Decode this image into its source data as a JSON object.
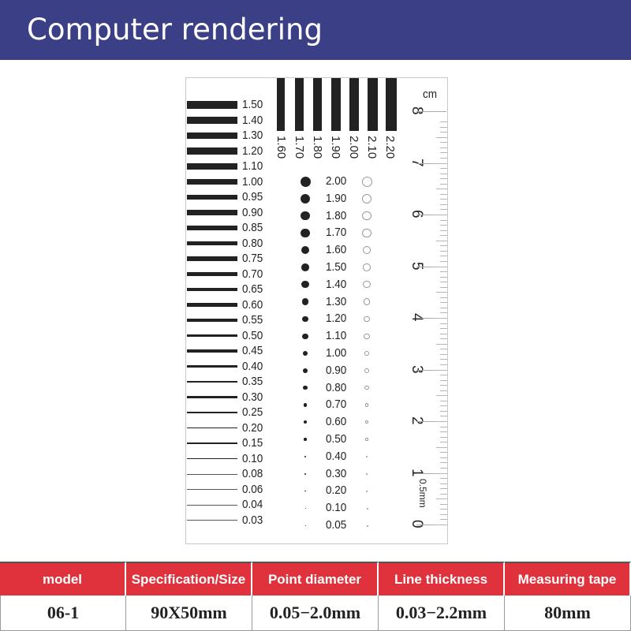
{
  "header": {
    "title": "Computer rendering"
  },
  "card": {
    "horizontal_lines": [
      "1.50",
      "1.40",
      "1.30",
      "1.20",
      "1.10",
      "1.00",
      "0.95",
      "0.90",
      "0.85",
      "0.80",
      "0.75",
      "0.70",
      "0.65",
      "0.60",
      "0.55",
      "0.50",
      "0.45",
      "0.40",
      "0.35",
      "0.30",
      "0.25",
      "0.20",
      "0.15",
      "0.10",
      "0.08",
      "0.06",
      "0.04",
      "0.03"
    ],
    "vertical_bars": [
      "1.60",
      "1.70",
      "1.80",
      "1.90",
      "2.00",
      "2.10",
      "2.20"
    ],
    "dots": [
      "2.00",
      "1.90",
      "1.80",
      "1.70",
      "1.60",
      "1.50",
      "1.40",
      "1.30",
      "1.20",
      "1.10",
      "1.00",
      "0.90",
      "0.80",
      "0.70",
      "0.60",
      "0.50",
      "0.40",
      "0.30",
      "0.20",
      "0.10",
      "0.05"
    ],
    "ruler": {
      "unit": "cm",
      "numbers": [
        "0",
        "1",
        "2",
        "3",
        "4",
        "5",
        "6",
        "7",
        "8"
      ],
      "minor_label": "0.5mm"
    }
  },
  "table": {
    "headers": [
      "model",
      "Specification/Size",
      "Point diameter",
      "Line thickness",
      "Measuring tape"
    ],
    "values": [
      "06-1",
      "90X50mm",
      "0.05−2.0mm",
      "0.03−2.2mm",
      "80mm"
    ],
    "header_color": "#e0323c"
  },
  "colors": {
    "banner": "#3b3f86",
    "ink": "#222222"
  }
}
